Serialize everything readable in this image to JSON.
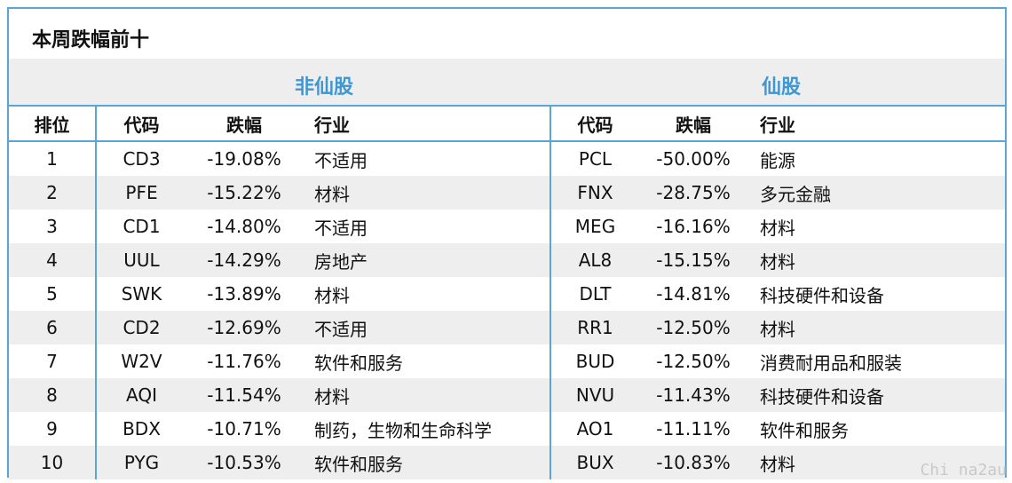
{
  "title": "本周跌幅前十",
  "groups": {
    "non_speculative": "非仙股",
    "speculative": "仙股"
  },
  "headers": {
    "rank": "排位",
    "code": "代码",
    "change": "跌幅",
    "industry": "行业"
  },
  "rows": [
    {
      "rank": "1",
      "a_code": "CD3",
      "a_change": "-19.08%",
      "a_industry": "不适用",
      "b_code": "PCL",
      "b_change": "-50.00%",
      "b_industry": "能源"
    },
    {
      "rank": "2",
      "a_code": "PFE",
      "a_change": "-15.22%",
      "a_industry": "材料",
      "b_code": "FNX",
      "b_change": "-28.75%",
      "b_industry": "多元金融"
    },
    {
      "rank": "3",
      "a_code": "CD1",
      "a_change": "-14.80%",
      "a_industry": "不适用",
      "b_code": "MEG",
      "b_change": "-16.16%",
      "b_industry": "材料"
    },
    {
      "rank": "4",
      "a_code": "UUL",
      "a_change": "-14.29%",
      "a_industry": "房地产",
      "b_code": "AL8",
      "b_change": "-15.15%",
      "b_industry": "材料"
    },
    {
      "rank": "5",
      "a_code": "SWK",
      "a_change": "-13.89%",
      "a_industry": "材料",
      "b_code": "DLT",
      "b_change": "-14.81%",
      "b_industry": "科技硬件和设备"
    },
    {
      "rank": "6",
      "a_code": "CD2",
      "a_change": "-12.69%",
      "a_industry": "不适用",
      "b_code": "RR1",
      "b_change": "-12.50%",
      "b_industry": "材料"
    },
    {
      "rank": "7",
      "a_code": "W2V",
      "a_change": "-11.76%",
      "a_industry": "软件和服务",
      "b_code": "BUD",
      "b_change": "-12.50%",
      "b_industry": "消费耐用品和服装"
    },
    {
      "rank": "8",
      "a_code": "AQI",
      "a_change": "-11.54%",
      "a_industry": "材料",
      "b_code": "NVU",
      "b_change": "-11.43%",
      "b_industry": "科技硬件和设备"
    },
    {
      "rank": "9",
      "a_code": "BDX",
      "a_change": "-10.71%",
      "a_industry": "制药，生物和生命科学",
      "b_code": "AO1",
      "b_change": "-11.11%",
      "b_industry": "软件和服务"
    },
    {
      "rank": "10",
      "a_code": "PYG",
      "a_change": "-10.53%",
      "a_industry": "软件和服务",
      "b_code": "BUX",
      "b_change": "-10.83%",
      "b_industry": "材料"
    }
  ],
  "watermark": "Chi na2au",
  "colors": {
    "border": "#58a6d8",
    "group_label": "#3d97d3",
    "shade": "#eeeeee"
  }
}
